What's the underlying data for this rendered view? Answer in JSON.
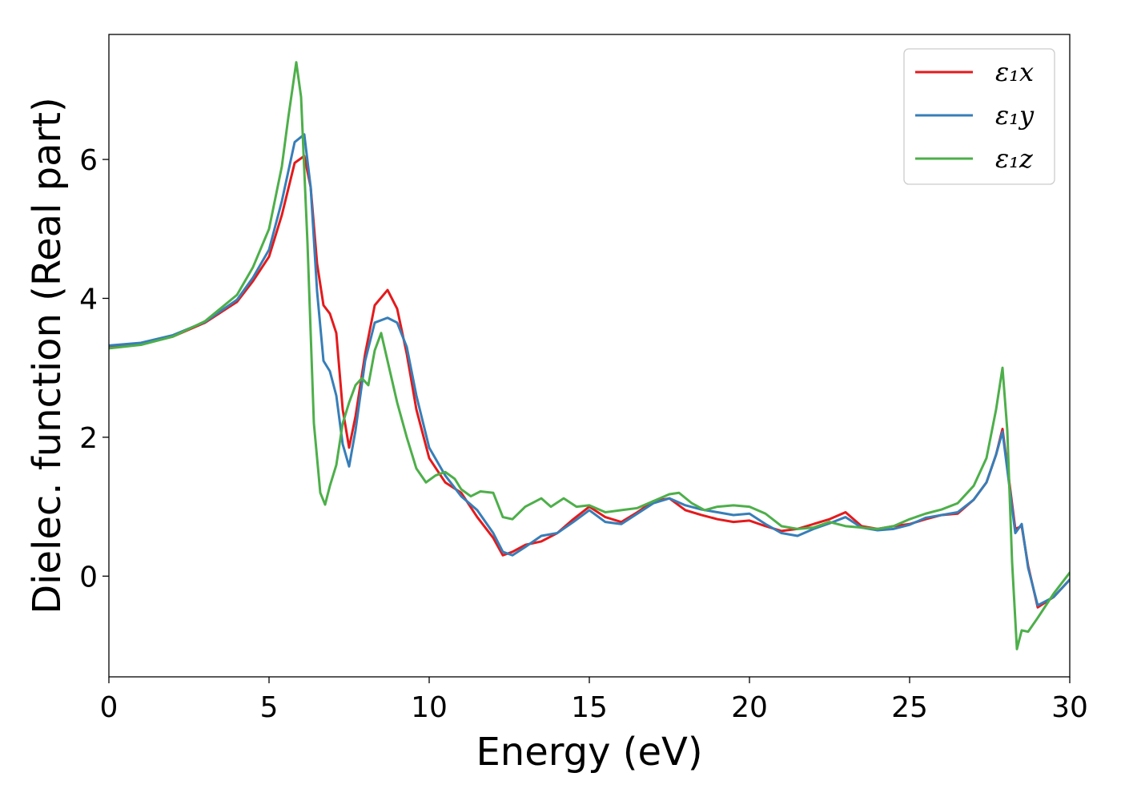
{
  "chart_data": {
    "type": "line",
    "title": "",
    "xlabel": "Energy (eV)",
    "ylabel": "Dielec. function (Real part)",
    "xlim": [
      0,
      30
    ],
    "ylim": [
      -1.45,
      7.8
    ],
    "xticks": [
      0,
      5,
      10,
      15,
      20,
      25,
      30
    ],
    "yticks": [
      0,
      2,
      4,
      6
    ],
    "grid": false,
    "legend": {
      "placement": "top-right",
      "entries": [
        "ε₁x",
        "ε₁y",
        "ε₁z"
      ]
    },
    "series": [
      {
        "name": "ε₁x",
        "color": "#e41a1c",
        "x": [
          0,
          1,
          2,
          3,
          4,
          4.5,
          5,
          5.4,
          5.8,
          6.1,
          6.3,
          6.5,
          6.7,
          6.9,
          7.1,
          7.3,
          7.5,
          7.7,
          8.0,
          8.3,
          8.7,
          9.0,
          9.3,
          9.6,
          10.0,
          10.5,
          11.0,
          11.5,
          12.0,
          12.3,
          12.6,
          13.0,
          13.5,
          14.0,
          14.5,
          15.0,
          15.5,
          16.0,
          16.5,
          17.0,
          17.5,
          18.0,
          18.5,
          19.0,
          19.5,
          20.0,
          20.5,
          21.0,
          21.5,
          22.0,
          22.5,
          23.0,
          23.5,
          24.0,
          24.5,
          25.0,
          25.5,
          26.0,
          26.5,
          27.0,
          27.4,
          27.7,
          27.9,
          28.1,
          28.3,
          28.5,
          28.7,
          29.0,
          29.5,
          30.0
        ],
        "y": [
          3.3,
          3.34,
          3.45,
          3.65,
          3.95,
          4.25,
          4.6,
          5.2,
          5.95,
          6.05,
          5.6,
          4.5,
          3.9,
          3.78,
          3.5,
          2.4,
          1.85,
          2.3,
          3.2,
          3.9,
          4.12,
          3.85,
          3.2,
          2.4,
          1.7,
          1.35,
          1.2,
          0.85,
          0.55,
          0.3,
          0.35,
          0.45,
          0.5,
          0.62,
          0.82,
          1.0,
          0.85,
          0.78,
          0.92,
          1.08,
          1.12,
          0.95,
          0.88,
          0.82,
          0.78,
          0.8,
          0.72,
          0.65,
          0.68,
          0.75,
          0.82,
          0.92,
          0.72,
          0.68,
          0.72,
          0.75,
          0.82,
          0.88,
          0.9,
          1.1,
          1.35,
          1.75,
          2.12,
          1.4,
          0.68,
          0.72,
          0.15,
          -0.45,
          -0.3,
          -0.05
        ]
      },
      {
        "name": "ε₁y",
        "color": "#377eb8",
        "x": [
          0,
          1,
          2,
          3,
          4,
          4.5,
          5,
          5.4,
          5.8,
          6.1,
          6.3,
          6.5,
          6.7,
          6.9,
          7.1,
          7.3,
          7.5,
          7.7,
          8.0,
          8.3,
          8.7,
          9.0,
          9.3,
          9.6,
          10.0,
          10.5,
          11.0,
          11.5,
          12.0,
          12.3,
          12.6,
          13.0,
          13.5,
          14.0,
          14.5,
          15.0,
          15.5,
          16.0,
          16.5,
          17.0,
          17.5,
          18.0,
          18.5,
          19.0,
          19.5,
          20.0,
          20.5,
          21.0,
          21.5,
          22.0,
          22.5,
          23.0,
          23.5,
          24.0,
          24.5,
          25.0,
          25.5,
          26.0,
          26.5,
          27.0,
          27.4,
          27.7,
          27.9,
          28.1,
          28.3,
          28.5,
          28.7,
          29.0,
          29.5,
          30.0
        ],
        "y": [
          3.32,
          3.36,
          3.47,
          3.66,
          3.98,
          4.3,
          4.7,
          5.4,
          6.25,
          6.36,
          5.6,
          4.1,
          3.1,
          2.95,
          2.6,
          1.9,
          1.58,
          2.1,
          3.1,
          3.65,
          3.72,
          3.65,
          3.3,
          2.6,
          1.85,
          1.45,
          1.15,
          0.95,
          0.62,
          0.35,
          0.3,
          0.42,
          0.58,
          0.62,
          0.78,
          0.95,
          0.78,
          0.75,
          0.9,
          1.05,
          1.12,
          1.02,
          0.96,
          0.92,
          0.88,
          0.9,
          0.75,
          0.62,
          0.58,
          0.68,
          0.76,
          0.85,
          0.7,
          0.66,
          0.68,
          0.74,
          0.84,
          0.88,
          0.92,
          1.1,
          1.35,
          1.75,
          2.08,
          1.35,
          0.62,
          0.75,
          0.12,
          -0.42,
          -0.3,
          -0.05
        ]
      },
      {
        "name": "ε₁z",
        "color": "#4daf4a",
        "x": [
          0,
          1,
          2,
          3,
          4,
          4.5,
          5,
          5.4,
          5.6,
          5.85,
          6.0,
          6.2,
          6.4,
          6.6,
          6.75,
          6.9,
          7.1,
          7.3,
          7.5,
          7.7,
          7.9,
          8.1,
          8.3,
          8.5,
          8.7,
          9.0,
          9.3,
          9.6,
          9.9,
          10.2,
          10.5,
          10.8,
          11.0,
          11.3,
          11.6,
          12.0,
          12.3,
          12.6,
          13.0,
          13.5,
          13.8,
          14.2,
          14.6,
          15.0,
          15.5,
          16.0,
          16.5,
          17.0,
          17.5,
          17.8,
          18.2,
          18.6,
          19.0,
          19.5,
          20.0,
          20.5,
          21.0,
          21.5,
          22.0,
          22.5,
          23.0,
          23.5,
          24.0,
          24.5,
          25.0,
          25.5,
          26.0,
          26.5,
          27.0,
          27.4,
          27.7,
          27.9,
          28.05,
          28.2,
          28.35,
          28.5,
          28.7,
          29.0,
          29.5,
          30.0
        ],
        "y": [
          3.28,
          3.33,
          3.45,
          3.67,
          4.05,
          4.45,
          5.0,
          5.9,
          6.6,
          7.4,
          6.9,
          4.8,
          2.2,
          1.2,
          1.03,
          1.3,
          1.6,
          2.2,
          2.5,
          2.75,
          2.85,
          2.75,
          3.25,
          3.5,
          3.1,
          2.5,
          2.0,
          1.55,
          1.35,
          1.45,
          1.5,
          1.4,
          1.25,
          1.15,
          1.22,
          1.2,
          0.85,
          0.82,
          1.0,
          1.12,
          1.0,
          1.12,
          1.0,
          1.02,
          0.92,
          0.95,
          0.98,
          1.08,
          1.18,
          1.2,
          1.05,
          0.95,
          1.0,
          1.02,
          1.0,
          0.9,
          0.72,
          0.68,
          0.7,
          0.78,
          0.72,
          0.7,
          0.68,
          0.72,
          0.82,
          0.9,
          0.96,
          1.05,
          1.3,
          1.7,
          2.4,
          3.0,
          2.1,
          0.2,
          -1.05,
          -0.78,
          -0.8,
          -0.6,
          -0.25,
          0.05
        ]
      }
    ]
  }
}
